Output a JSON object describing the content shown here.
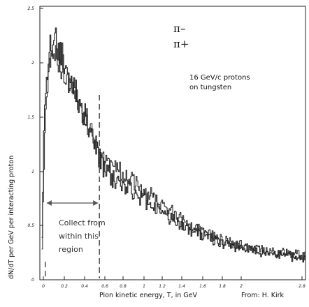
{
  "chart_data": {
    "type": "line",
    "title": "",
    "xlabel": "Pion kinetic energy, T, in GeV",
    "ylabel": "dN/dT per GeV per interacting proton",
    "xlim": [
      0,
      2.9
    ],
    "ylim": [
      0,
      2.5
    ],
    "xticks": [
      "0",
      "0.2",
      "0.4",
      "0.6",
      "0.8",
      "1",
      "1.2",
      "1.4",
      "1.6",
      "1.8",
      "2",
      "2.8"
    ],
    "yticks": [
      "0",
      "0.5",
      "1",
      "1.5",
      "2",
      "2.5"
    ],
    "legend": [
      "π–",
      "π+"
    ],
    "legend_position": "top-right",
    "grid": false,
    "annotation_text": "16 GeV/c protons on tungsten",
    "annotation_lines": [
      "16 GeV/c protons",
      "on tungsten"
    ],
    "region_text_lines": [
      "Collect from",
      "within this",
      "region"
    ],
    "region_bounds": [
      0.06,
      0.65
    ],
    "credit": "From: H. Kirk",
    "series": [
      {
        "name": "π–",
        "x": [
          0.02,
          0.04,
          0.06,
          0.08,
          0.1,
          0.12,
          0.14,
          0.16,
          0.18,
          0.2,
          0.25,
          0.3,
          0.35,
          0.4,
          0.45,
          0.5,
          0.55,
          0.6,
          0.65,
          0.7,
          0.8,
          0.9,
          1.0,
          1.1,
          1.2,
          1.3,
          1.4,
          1.5,
          1.6,
          1.7,
          1.8,
          1.9,
          2.0,
          2.1,
          2.2,
          2.3,
          2.4,
          2.5,
          2.6,
          2.7,
          2.8,
          2.9
        ],
        "y": [
          0.35,
          1.3,
          1.7,
          1.95,
          2.05,
          2.15,
          2.2,
          2.25,
          2.2,
          2.12,
          2.0,
          1.87,
          1.78,
          1.68,
          1.58,
          1.45,
          1.33,
          1.2,
          1.1,
          1.0,
          0.92,
          0.88,
          0.82,
          0.75,
          0.69,
          0.63,
          0.57,
          0.52,
          0.47,
          0.43,
          0.4,
          0.36,
          0.33,
          0.31,
          0.29,
          0.27,
          0.25,
          0.24,
          0.23,
          0.22,
          0.2,
          0.2
        ]
      },
      {
        "name": "π+",
        "x": [
          0.02,
          0.04,
          0.06,
          0.08,
          0.1,
          0.12,
          0.14,
          0.16,
          0.18,
          0.2,
          0.25,
          0.3,
          0.35,
          0.4,
          0.45,
          0.5,
          0.55,
          0.6,
          0.65,
          0.7,
          0.8,
          0.9,
          1.0,
          1.1,
          1.2,
          1.3,
          1.4,
          1.5,
          1.6,
          1.7,
          1.8,
          1.9,
          2.0,
          2.1,
          2.2,
          2.3,
          2.4,
          2.5,
          2.6,
          2.7,
          2.8,
          2.9
        ],
        "y": [
          0.25,
          1.1,
          1.55,
          1.8,
          1.9,
          1.98,
          2.05,
          2.08,
          2.06,
          2.0,
          1.93,
          1.83,
          1.75,
          1.68,
          1.58,
          1.47,
          1.36,
          1.25,
          1.15,
          1.08,
          1.02,
          0.98,
          0.92,
          0.85,
          0.78,
          0.71,
          0.64,
          0.58,
          0.52,
          0.47,
          0.43,
          0.39,
          0.36,
          0.33,
          0.31,
          0.29,
          0.27,
          0.26,
          0.25,
          0.24,
          0.23,
          0.22
        ]
      }
    ]
  }
}
